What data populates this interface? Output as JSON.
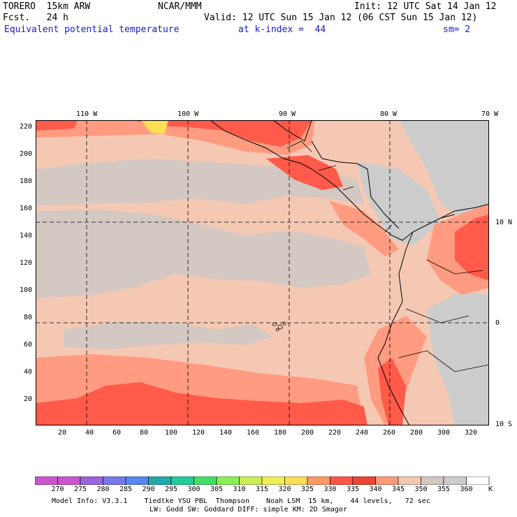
{
  "header": {
    "model": "TORERO  15km ARW",
    "center": "NCAR/MMM",
    "init": "Init: 12 UTC Sat 14 Jan 12",
    "fcst": "Fcst.   24 h",
    "valid": "Valid: 12 UTC Sun 15 Jan 12 (06 CST Sun 15 Jan 12)",
    "field": "Equivalent potential temperature",
    "level": "at k-index =  44",
    "smooth": "sm= 2"
  },
  "axes": {
    "lon_labels": [
      "110 W",
      "100 W",
      "90 W",
      "80 W",
      "70 W"
    ],
    "lat_labels": [
      "10 N",
      "0",
      "10 S"
    ],
    "y_ticks": [
      "220",
      "200",
      "180",
      "160",
      "140",
      "120",
      "100",
      "80",
      "60",
      "40",
      "20"
    ],
    "x_ticks": [
      "20",
      "40",
      "60",
      "80",
      "100",
      "120",
      "140",
      "160",
      "180",
      "200",
      "220",
      "240",
      "260",
      "280",
      "300",
      "320"
    ]
  },
  "colorbar": {
    "unit": "K",
    "labels": [
      "270",
      "275",
      "280",
      "285",
      "290",
      "295",
      "300",
      "305",
      "310",
      "315",
      "320",
      "325",
      "330",
      "335",
      "340",
      "345",
      "350",
      "355",
      "360"
    ],
    "colors": [
      "#cc55cc",
      "#9966dd",
      "#7777ee",
      "#5588ee",
      "#22aaaa",
      "#22cc99",
      "#44dd66",
      "#88ee55",
      "#ccee55",
      "#eeee55",
      "#ffdd55",
      "#ff9966",
      "#ff5544",
      "#ee4433",
      "#ff9977",
      "#f5c8b4",
      "#d2c8c0",
      "#cccccc",
      "#ffffff"
    ]
  },
  "map_colors": {
    "c340": "#f5c8b4",
    "c345": "#d4c8c2",
    "c350": "#cccccc",
    "c335": "#ff9b80",
    "c330": "#ff5a4a",
    "c320": "#ffdd55",
    "land_line": "#000000"
  },
  "footer": {
    "line1": "Model Info: V3.3.1    Tiedtke YSU PBL  Thompson    Noah LSM  15 km,    44 levels,   72 sec",
    "line2": "LW: Godd SW: Goddard DIFF: simple KM: 2D Smagor"
  }
}
